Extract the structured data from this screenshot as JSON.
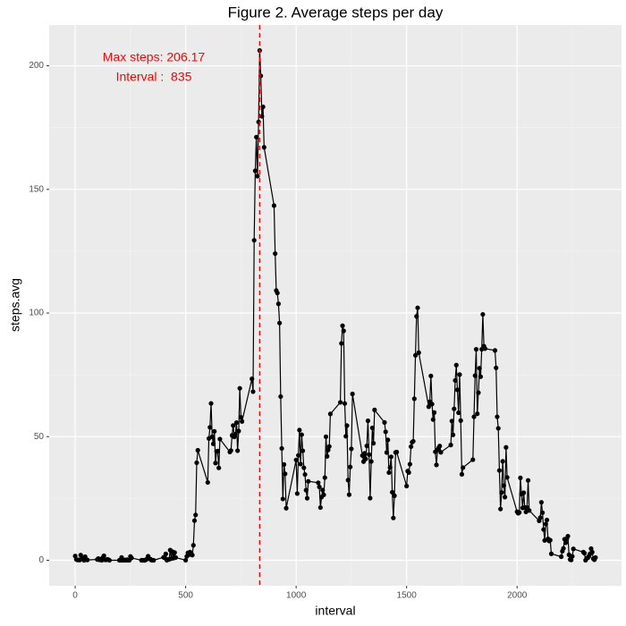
{
  "chart_data": {
    "type": "line",
    "title": "Figure 2. Average steps per day",
    "x_label": "interval",
    "y_label": "steps.avg",
    "annotations": [
      "Max steps: 206.17",
      "Interval :  835"
    ],
    "annotation_color": "#ff0000",
    "vline": 835,
    "vline_color": "#ff0000",
    "xlim": [
      -117.75,
      2472.75
    ],
    "ylim": [
      -10.31,
      216.48
    ],
    "xticks": [
      0,
      500,
      1000,
      1500,
      2000
    ],
    "yticks": [
      0,
      50,
      100,
      150,
      200
    ],
    "xminor_ticks": [
      250,
      750,
      1250,
      1750,
      2250
    ],
    "yminor_ticks": [
      25,
      75,
      125,
      175
    ],
    "grid": true,
    "series": [
      {
        "name": "steps.avg",
        "color": "#000000",
        "x": [
          0,
          5,
          10,
          15,
          20,
          25,
          30,
          35,
          40,
          45,
          50,
          55,
          100,
          105,
          110,
          115,
          120,
          125,
          130,
          135,
          140,
          145,
          150,
          155,
          200,
          205,
          210,
          215,
          220,
          225,
          230,
          235,
          240,
          245,
          250,
          255,
          300,
          305,
          310,
          315,
          320,
          325,
          330,
          335,
          340,
          345,
          350,
          355,
          400,
          405,
          410,
          415,
          420,
          425,
          430,
          435,
          440,
          445,
          450,
          455,
          500,
          505,
          510,
          515,
          520,
          525,
          530,
          535,
          540,
          545,
          550,
          555,
          600,
          605,
          610,
          615,
          620,
          625,
          630,
          635,
          640,
          645,
          650,
          655,
          700,
          705,
          710,
          715,
          720,
          725,
          730,
          735,
          740,
          745,
          750,
          755,
          800,
          805,
          810,
          815,
          820,
          825,
          830,
          835,
          840,
          845,
          850,
          855,
          900,
          905,
          910,
          915,
          920,
          925,
          930,
          935,
          940,
          945,
          950,
          955,
          1000,
          1005,
          1010,
          1015,
          1020,
          1025,
          1030,
          1035,
          1040,
          1045,
          1050,
          1055,
          1100,
          1105,
          1110,
          1115,
          1120,
          1125,
          1130,
          1135,
          1140,
          1145,
          1150,
          1155,
          1200,
          1205,
          1210,
          1215,
          1220,
          1225,
          1230,
          1235,
          1240,
          1245,
          1250,
          1255,
          1300,
          1305,
          1310,
          1315,
          1320,
          1325,
          1330,
          1335,
          1340,
          1345,
          1350,
          1355,
          1400,
          1405,
          1410,
          1415,
          1420,
          1425,
          1430,
          1435,
          1440,
          1445,
          1450,
          1455,
          1500,
          1505,
          1510,
          1515,
          1520,
          1525,
          1530,
          1535,
          1540,
          1545,
          1550,
          1555,
          1600,
          1605,
          1610,
          1615,
          1620,
          1625,
          1630,
          1635,
          1640,
          1645,
          1650,
          1655,
          1700,
          1705,
          1710,
          1715,
          1720,
          1725,
          1730,
          1735,
          1740,
          1745,
          1750,
          1755,
          1800,
          1805,
          1810,
          1815,
          1820,
          1825,
          1830,
          1835,
          1840,
          1845,
          1850,
          1855,
          1900,
          1905,
          1910,
          1915,
          1920,
          1925,
          1930,
          1935,
          1940,
          1945,
          1950,
          1955,
          2000,
          2005,
          2010,
          2015,
          2020,
          2025,
          2030,
          2035,
          2040,
          2045,
          2050,
          2055,
          2100,
          2105,
          2110,
          2115,
          2120,
          2125,
          2130,
          2135,
          2140,
          2145,
          2150,
          2155,
          2200,
          2205,
          2210,
          2215,
          2220,
          2225,
          2230,
          2235,
          2240,
          2245,
          2250,
          2255,
          2300,
          2305,
          2310,
          2315,
          2320,
          2325,
          2330,
          2335,
          2340,
          2345,
          2350,
          2355
        ],
        "values": [
          1.72,
          0.34,
          0.13,
          0.15,
          0.08,
          2.09,
          0.53,
          0.87,
          0,
          1.47,
          0.3,
          0.13,
          0.32,
          0.68,
          0.15,
          0.34,
          0,
          1.11,
          1.83,
          0.17,
          0.17,
          0.38,
          0.26,
          0,
          0,
          0,
          1.13,
          0,
          0,
          0.13,
          0,
          0.23,
          0,
          0,
          1.55,
          0.94,
          0,
          0,
          0,
          0,
          0.21,
          0.62,
          1.62,
          0.58,
          0.49,
          0.08,
          0,
          0,
          1.19,
          0.94,
          2.57,
          0,
          0.34,
          0.36,
          4.11,
          0.66,
          3.49,
          0.83,
          3.11,
          1.11,
          0,
          1.57,
          3,
          2.25,
          3.32,
          2.96,
          2.09,
          6.06,
          16.02,
          18.34,
          39.45,
          44.49,
          31.49,
          49.26,
          53.77,
          63.45,
          49.96,
          47.08,
          52.15,
          39.34,
          44.02,
          44.17,
          37.36,
          49.04,
          43.81,
          44.38,
          50.51,
          54.51,
          49.92,
          50.98,
          55.68,
          44.32,
          52.26,
          69.55,
          57.85,
          56.15,
          73.38,
          68.21,
          129.43,
          157.53,
          171.15,
          155.4,
          177.3,
          206.17,
          195.92,
          179.57,
          183.4,
          167.02,
          143.45,
          124.04,
          109.11,
          108.11,
          103.72,
          95.96,
          66.21,
          45.23,
          24.79,
          38.75,
          34.98,
          21.06,
          40.57,
          26.98,
          42.42,
          52.66,
          38.92,
          50.79,
          44.28,
          37.42,
          34.7,
          28.34,
          25.09,
          31.94,
          31.36,
          29.68,
          21.32,
          25.55,
          28.38,
          26.47,
          33.43,
          49.98,
          42.04,
          44.6,
          46.04,
          59.19,
          63.87,
          87.7,
          94.85,
          92.77,
          63.4,
          50.17,
          54.47,
          32.42,
          26.53,
          37.74,
          45.06,
          67.28,
          42.34,
          39.89,
          43.26,
          40.98,
          46.25,
          56.43,
          42.75,
          25.13,
          39.96,
          53.55,
          47.32,
          60.81,
          55.75,
          51.96,
          43.58,
          48.7,
          35.47,
          37.55,
          41.85,
          27.51,
          17.11,
          26.08,
          43.62,
          43.77,
          30.02,
          36.08,
          35.49,
          38.85,
          45.96,
          47.75,
          48.13,
          65.32,
          82.91,
          98.66,
          102.11,
          83.96,
          62.13,
          64.13,
          74.55,
          63.17,
          56.91,
          59.77,
          43.87,
          38.57,
          44.66,
          45.45,
          46.21,
          43.68,
          46.62,
          56.3,
          50.72,
          61.23,
          72.72,
          78.94,
          68.94,
          59.66,
          75.09,
          56.51,
          34.77,
          37.45,
          40.68,
          58.02,
          74.7,
          85.32,
          59.26,
          67.77,
          77.7,
          74.25,
          85.34,
          99.45,
          86.58,
          85.6,
          84.87,
          77.83,
          58.04,
          53.36,
          36.32,
          20.72,
          27.4,
          40.02,
          30.21,
          25.55,
          45.66,
          33.53,
          19.62,
          19.02,
          19.34,
          33.34,
          26.81,
          21.17,
          27.3,
          21.34,
          19.55,
          21.32,
          32.3,
          20.15,
          15.94,
          17.23,
          23.45,
          19.25,
          12.45,
          8.02,
          14.66,
          16.3,
          8.68,
          7.79,
          8.13,
          2.62,
          1.45,
          3.68,
          4.81,
          8.51,
          7.08,
          8.7,
          9.75,
          2.21,
          0.32,
          0.11,
          1.6,
          4.6,
          3.3,
          2.85,
          0,
          0.83,
          0.96,
          1.58,
          2.6,
          4.7,
          3.3,
          0.64,
          0.23,
          1.08
        ]
      }
    ]
  }
}
